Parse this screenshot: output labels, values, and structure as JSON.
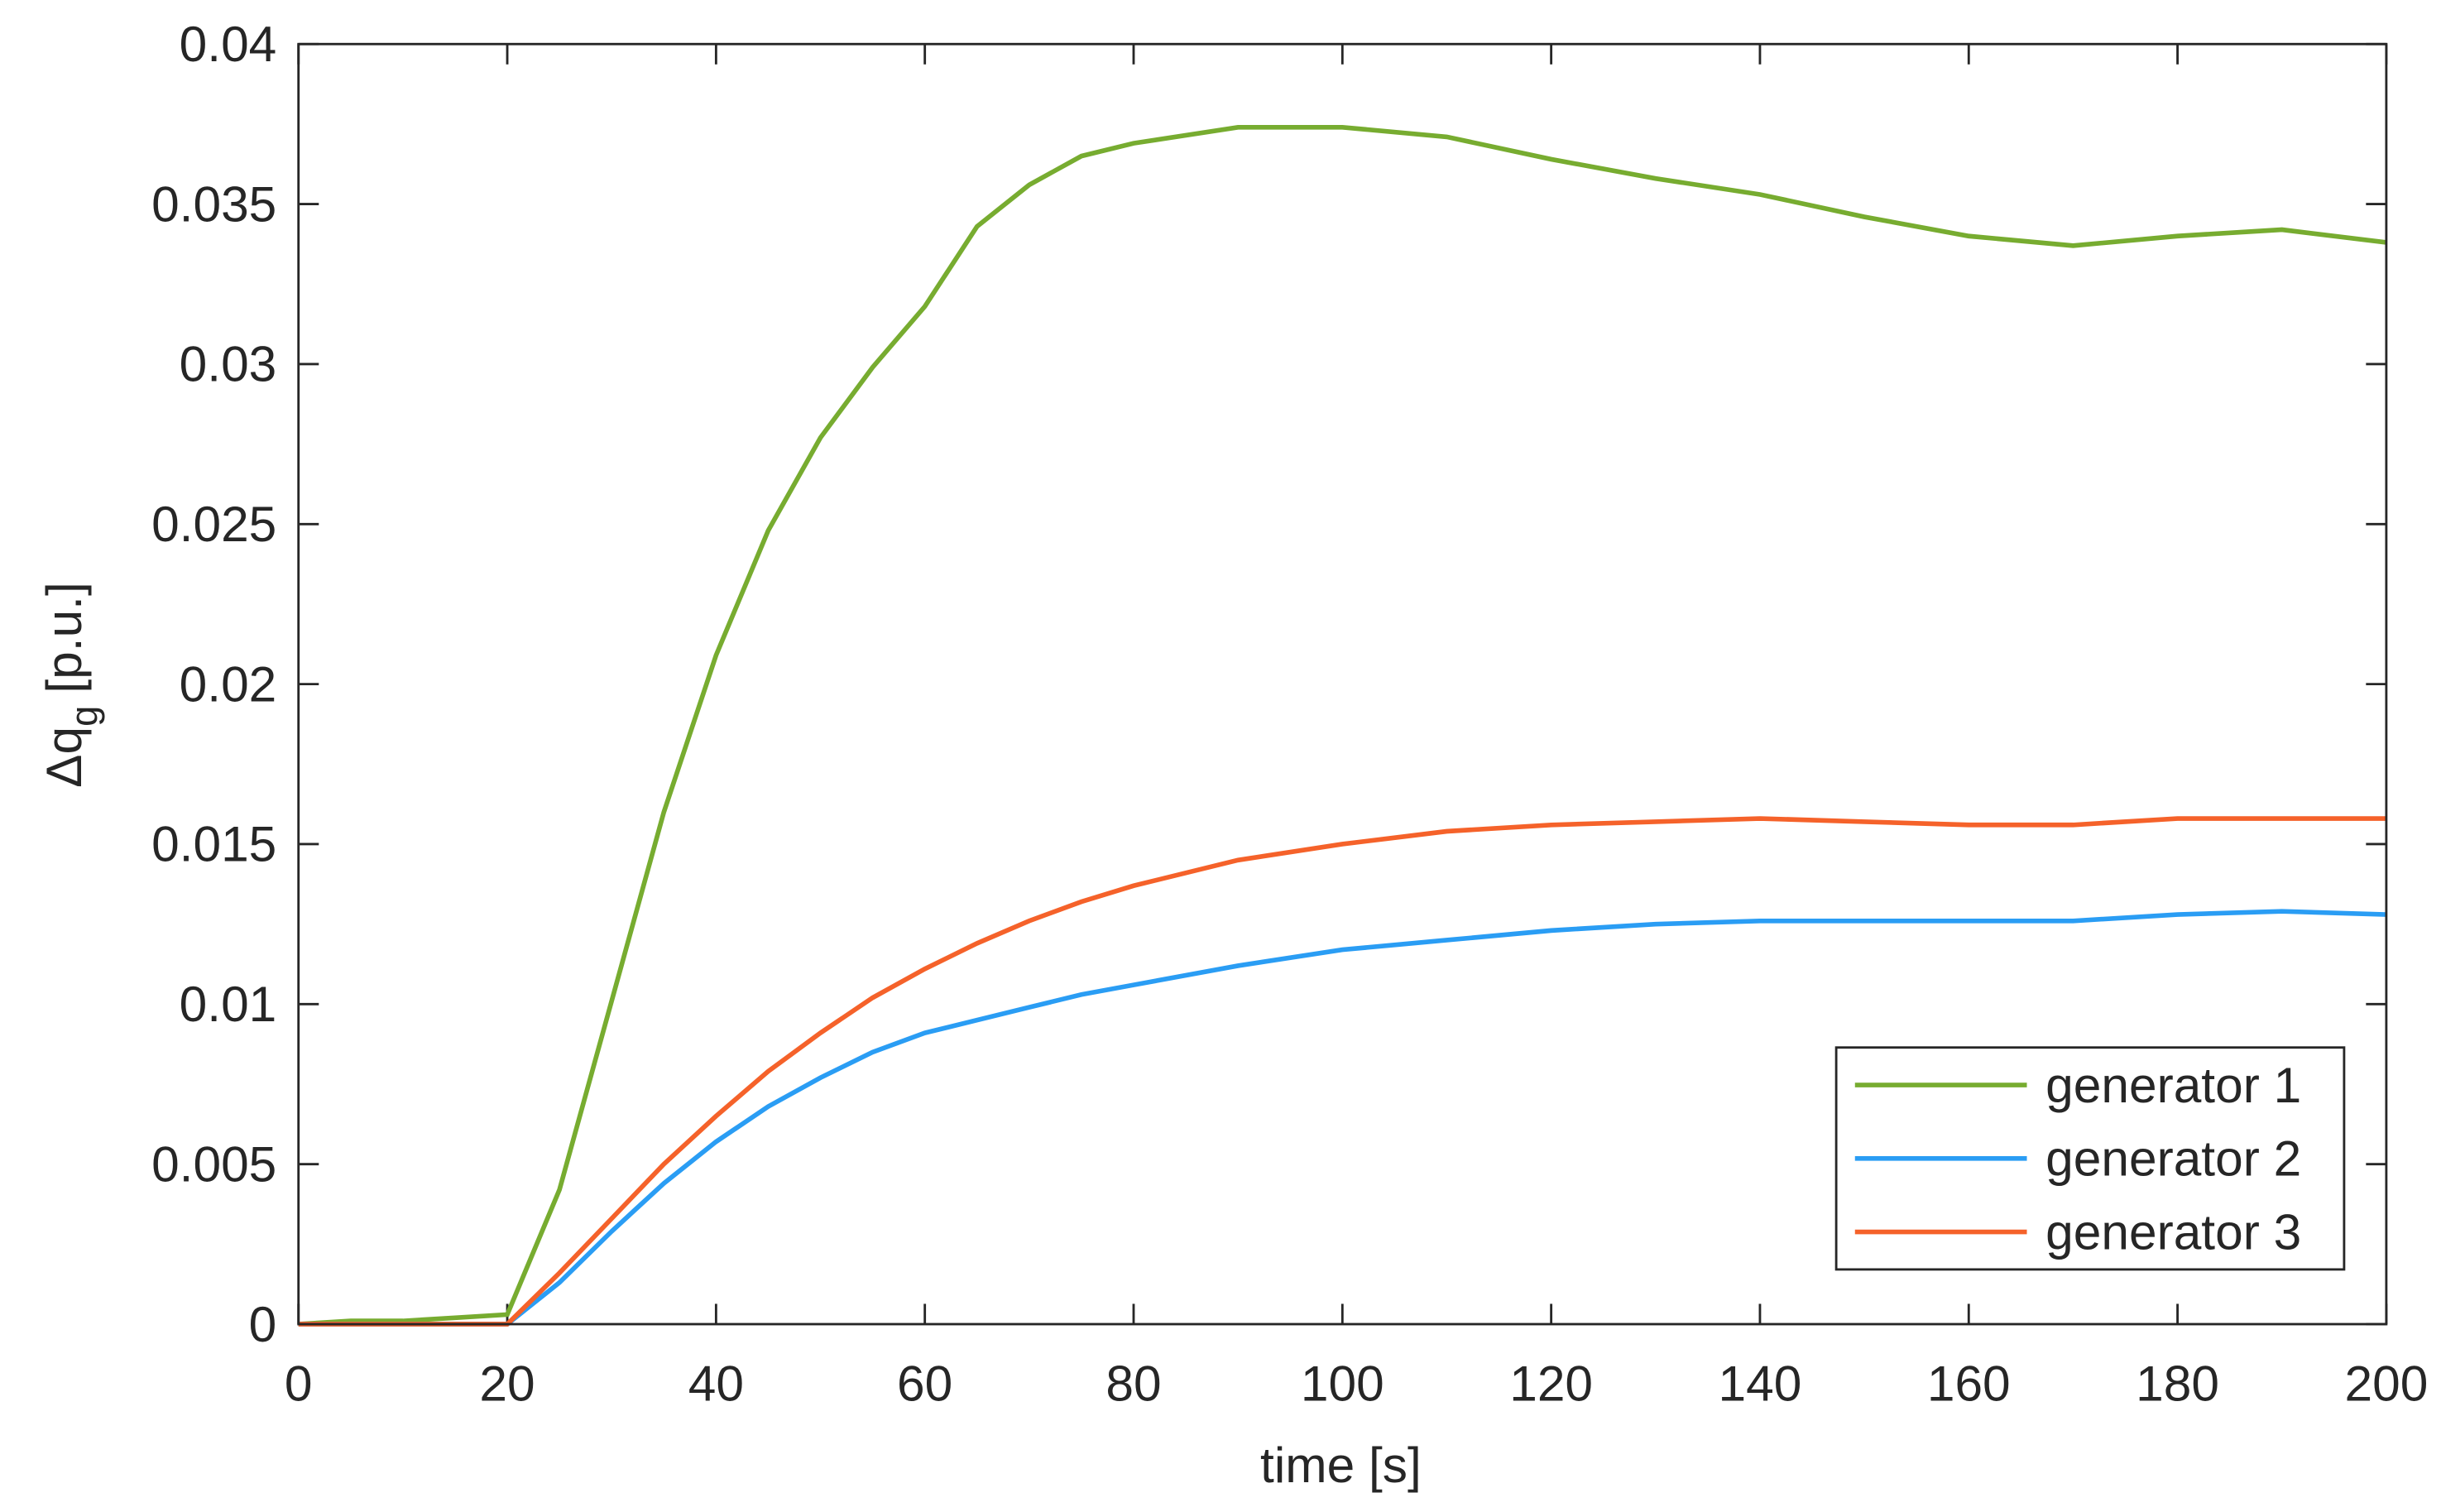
{
  "chart_data": {
    "type": "line",
    "xlabel": "time [s]",
    "ylabel": {
      "symbol": "Δq",
      "subscript": "g",
      "unit": "[p.u.]"
    },
    "x": [
      0,
      5,
      10,
      15,
      20,
      25,
      30,
      35,
      40,
      45,
      50,
      55,
      60,
      65,
      70,
      75,
      80,
      90,
      100,
      110,
      120,
      130,
      140,
      150,
      160,
      170,
      180,
      190,
      200
    ],
    "series": [
      {
        "name": "generator 1",
        "color": "#77ac30",
        "values": [
          0,
          0.0001,
          0.0001,
          0.0002,
          0.0003,
          0.0042,
          0.0101,
          0.016,
          0.0209,
          0.0248,
          0.0277,
          0.0299,
          0.0318,
          0.0343,
          0.0356,
          0.0365,
          0.0369,
          0.0374,
          0.0374,
          0.0371,
          0.0364,
          0.0358,
          0.0353,
          0.0346,
          0.034,
          0.0337,
          0.034,
          0.0342,
          0.0338
        ]
      },
      {
        "name": "generator 2",
        "color": "#2a9df4",
        "values": [
          0,
          0,
          0,
          0,
          0,
          0.0013,
          0.0029,
          0.0044,
          0.0057,
          0.0068,
          0.0077,
          0.0085,
          0.0091,
          0.0095,
          0.0099,
          0.0103,
          0.0106,
          0.0112,
          0.0117,
          0.012,
          0.0123,
          0.0125,
          0.0126,
          0.0126,
          0.0126,
          0.0126,
          0.0128,
          0.0129,
          0.0128
        ]
      },
      {
        "name": "generator 3",
        "color": "#f5622a",
        "values": [
          0,
          0,
          0,
          0,
          0,
          0.0016,
          0.0033,
          0.005,
          0.0065,
          0.0079,
          0.0091,
          0.0102,
          0.0111,
          0.0119,
          0.0126,
          0.0132,
          0.0137,
          0.0145,
          0.015,
          0.0154,
          0.0156,
          0.0157,
          0.0158,
          0.0157,
          0.0156,
          0.0156,
          0.0158,
          0.0158,
          0.0158
        ]
      }
    ],
    "xlim": [
      0,
      200
    ],
    "xticks": [
      0,
      20,
      40,
      60,
      80,
      100,
      120,
      140,
      160,
      180,
      200
    ],
    "ylim": [
      0,
      0.04
    ],
    "yticks": [
      0,
      0.005,
      0.01,
      0.015,
      0.02,
      0.025,
      0.03,
      0.035,
      0.04
    ],
    "grid": false,
    "legend": "lower right"
  }
}
